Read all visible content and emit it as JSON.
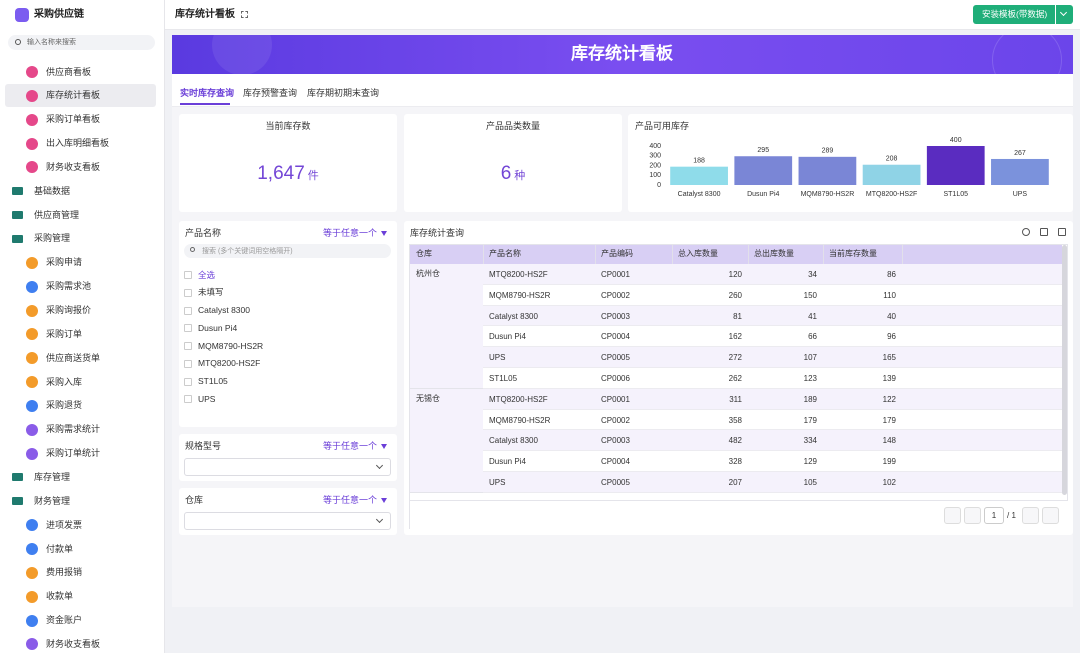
{
  "sidebar": {
    "app_name": "采购供应链",
    "search_placeholder": "输入名称来搜索",
    "dashboards": [
      "供应商看板",
      "库存统计看板",
      "采购订单看板",
      "出入库明细看板",
      "财务收支看板"
    ],
    "groups": [
      {
        "label": "基础数据"
      },
      {
        "label": "供应商管理"
      },
      {
        "label": "采购管理",
        "items": [
          "采购申请",
          "采购需求池",
          "采购询报价",
          "采购订单",
          "供应商送货单",
          "采购入库",
          "采购退货",
          "采购需求统计",
          "采购订单统计"
        ]
      },
      {
        "label": "库存管理"
      },
      {
        "label": "财务管理",
        "items": [
          "进项发票",
          "付款单",
          "费用报销",
          "收款单",
          "资金账户",
          "财务收支看板"
        ]
      }
    ]
  },
  "topbar": {
    "title": "库存统计看板",
    "button": "安装模板(带数据)"
  },
  "banner": {
    "title": "库存统计看板"
  },
  "tabs": [
    "实时库存查询",
    "库存预警查询",
    "库存期初期末查询"
  ],
  "stats": [
    {
      "title": "当前库存数",
      "value": "1,647",
      "unit": "件"
    },
    {
      "title": "产品品类数量",
      "value": 6,
      "unit": "种"
    }
  ],
  "chart_data": {
    "type": "bar",
    "title": "产品可用库存",
    "categories": [
      "Catalyst 8300",
      "Dusun Pi4",
      "MQM8790-HS2R",
      "MTQ8200-HS2F",
      "ST1L05",
      "UPS"
    ],
    "values": [
      188,
      295,
      289,
      208,
      400,
      267
    ],
    "colors": [
      "#8fdcea",
      "#7a86d6",
      "#7a86d6",
      "#8fd3e6",
      "#5a2cc0",
      "#7b92dc"
    ],
    "ylim": [
      0,
      400
    ],
    "yticks": [
      0,
      100,
      200,
      300,
      400
    ],
    "grid": false
  },
  "filters": [
    {
      "label": "产品名称",
      "operator": "等于任意一个",
      "search_placeholder": "搜索 (多个关键词用空格隔开)",
      "options": [
        "全选",
        "未填写",
        "Catalyst 8300",
        "Dusun Pi4",
        "MQM8790-HS2R",
        "MTQ8200-HS2F",
        "ST1L05",
        "UPS"
      ]
    },
    {
      "label": "规格型号",
      "operator": "等于任意一个"
    },
    {
      "label": "仓库",
      "operator": "等于任意一个"
    }
  ],
  "table": {
    "title": "库存统计查询",
    "columns": [
      "仓库",
      "产品名称",
      "产品编码",
      "总入库数量",
      "总出库数量",
      "当前库存数量"
    ],
    "groups": [
      {
        "warehouse": "杭州仓",
        "rows": [
          [
            "MTQ8200-HS2F",
            "CP0001",
            120,
            34,
            86
          ],
          [
            "MQM8790-HS2R",
            "CP0002",
            260,
            150,
            110
          ],
          [
            "Catalyst 8300",
            "CP0003",
            81,
            41,
            40
          ],
          [
            "Dusun Pi4",
            "CP0004",
            162,
            66,
            96
          ],
          [
            "UPS",
            "CP0005",
            272,
            107,
            165
          ],
          [
            "ST1L05",
            "CP0006",
            262,
            123,
            139
          ]
        ]
      },
      {
        "warehouse": "无锡仓",
        "rows": [
          [
            "MTQ8200-HS2F",
            "CP0001",
            311,
            189,
            122
          ],
          [
            "MQM8790-HS2R",
            "CP0002",
            358,
            179,
            179
          ],
          [
            "Catalyst 8300",
            "CP0003",
            482,
            334,
            148
          ],
          [
            "Dusun Pi4",
            "CP0004",
            328,
            129,
            199
          ],
          [
            "UPS",
            "CP0005",
            207,
            105,
            102
          ]
        ]
      }
    ]
  },
  "pagination": {
    "page": 1,
    "total_label": "/ 1"
  }
}
